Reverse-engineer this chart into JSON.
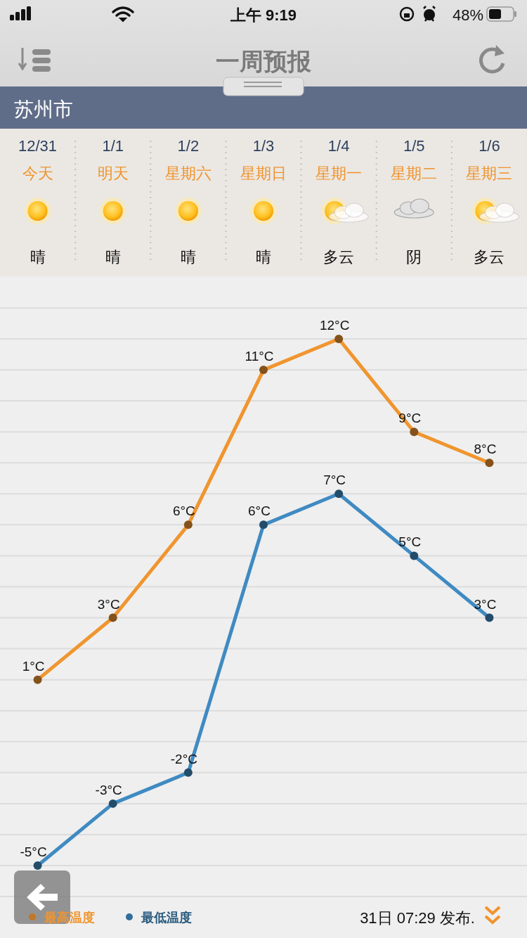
{
  "chart_data": {
    "type": "line",
    "title": "一周预报",
    "subtitle": "苏州市",
    "categories": [
      "12/31",
      "1/1",
      "1/2",
      "1/3",
      "1/4",
      "1/5",
      "1/6"
    ],
    "series": [
      {
        "name": "最高温度",
        "color": "#f0952f",
        "values": [
          1,
          3,
          6,
          11,
          12,
          9,
          8
        ],
        "value_labels": [
          "1°C",
          "3°C",
          "6°C",
          "11°C",
          "12°C",
          "9°C",
          "8°C"
        ]
      },
      {
        "name": "最低温度",
        "color": "#3f8ac2",
        "values": [
          -5,
          -3,
          -2,
          6,
          7,
          5,
          3
        ],
        "value_labels": [
          "-5°C",
          "-3°C",
          "-2°C",
          "6°C",
          "7°C",
          "5°C",
          "3°C"
        ]
      }
    ],
    "yticks": [
      {
        "value": -6,
        "label": null
      },
      {
        "value": -5,
        "label": null
      },
      {
        "value": -4,
        "label": null
      },
      {
        "value": -3,
        "label": null
      },
      {
        "value": -2,
        "label": null
      },
      {
        "value": -1,
        "label": null
      },
      {
        "value": 0,
        "label": null
      },
      {
        "value": 1,
        "label": null
      },
      {
        "value": 2,
        "label": null
      },
      {
        "value": 3,
        "label": null
      },
      {
        "value": 4,
        "label": null
      },
      {
        "value": 5,
        "label": null
      },
      {
        "value": 6,
        "label": null
      },
      {
        "value": 7,
        "label": null
      },
      {
        "value": 8,
        "label": null
      },
      {
        "value": 9,
        "label": null
      },
      {
        "value": 10,
        "label": null
      },
      {
        "value": 11,
        "label": null
      },
      {
        "value": 12,
        "label": null
      },
      {
        "value": 13,
        "label": null
      }
    ],
    "grid": "y",
    "tick_labels": "x",
    "legend": "bottom left",
    "marker": "circle",
    "line_style": "solid",
    "annotations": [
      "上午 9:19",
      "48%",
      "今天",
      "明天",
      "星期六",
      "星期日",
      "星期一",
      "星期二",
      "星期三",
      "晴",
      "晴",
      "晴",
      "晴",
      "多云",
      "阴",
      "多云",
      "31日 07:29 发布."
    ]
  }
}
